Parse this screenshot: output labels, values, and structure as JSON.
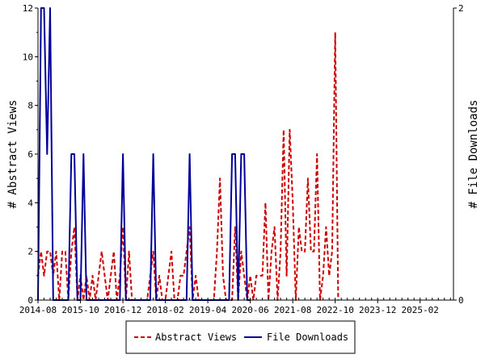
{
  "chart_data": {
    "type": "line",
    "ylabel_left": "# Abstract Views",
    "ylabel_right": "# File Downloads",
    "ylim_left": [
      0,
      12
    ],
    "ylim_right": [
      0,
      2
    ],
    "yticks_left": [
      "0",
      "2",
      "4",
      "6",
      "8",
      "10",
      "12"
    ],
    "yticks_right": [
      "0",
      "2"
    ],
    "xlim": [
      "2014-08",
      "2026-01"
    ],
    "xticks": [
      "2014-08",
      "2015-10",
      "2016-12",
      "2018-02",
      "2019-04",
      "2020-06",
      "2021-08",
      "2022-10",
      "2023-12",
      "2025-02"
    ],
    "grid": false,
    "legend_position": "bottom-center",
    "series": [
      {
        "name": "Abstract Views",
        "axis": "left",
        "color": "#cc0000",
        "style": "dashed",
        "points": [
          [
            "2014-08",
            1
          ],
          [
            "2014-09",
            2
          ],
          [
            "2014-10",
            1
          ],
          [
            "2014-11",
            2
          ],
          [
            "2014-12",
            2
          ],
          [
            "2015-01",
            1
          ],
          [
            "2015-02",
            2
          ],
          [
            "2015-03",
            0
          ],
          [
            "2015-04",
            2
          ],
          [
            "2015-05",
            2
          ],
          [
            "2015-06",
            0
          ],
          [
            "2015-07",
            2
          ],
          [
            "2015-08",
            3
          ],
          [
            "2015-09",
            0
          ],
          [
            "2015-10",
            1
          ],
          [
            "2015-11",
            0
          ],
          [
            "2015-12",
            1
          ],
          [
            "2016-01",
            0
          ],
          [
            "2016-02",
            1
          ],
          [
            "2016-03",
            0
          ],
          [
            "2016-04",
            1
          ],
          [
            "2016-05",
            2
          ],
          [
            "2016-06",
            1
          ],
          [
            "2016-07",
            0
          ],
          [
            "2016-08",
            1
          ],
          [
            "2016-09",
            2
          ],
          [
            "2016-10",
            0
          ],
          [
            "2016-11",
            1
          ],
          [
            "2016-12",
            3
          ],
          [
            "2017-01",
            0
          ],
          [
            "2017-02",
            2
          ],
          [
            "2017-03",
            0
          ],
          [
            "2017-04",
            0
          ],
          [
            "2017-05",
            0
          ],
          [
            "2017-06",
            0
          ],
          [
            "2017-07",
            0
          ],
          [
            "2017-08",
            0
          ],
          [
            "2017-09",
            1
          ],
          [
            "2017-10",
            2
          ],
          [
            "2017-11",
            0
          ],
          [
            "2017-12",
            1
          ],
          [
            "2018-01",
            0
          ],
          [
            "2018-02",
            0
          ],
          [
            "2018-03",
            1
          ],
          [
            "2018-04",
            2
          ],
          [
            "2018-05",
            0
          ],
          [
            "2018-06",
            0
          ],
          [
            "2018-07",
            1
          ],
          [
            "2018-08",
            1
          ],
          [
            "2018-09",
            2
          ],
          [
            "2018-10",
            3
          ],
          [
            "2018-11",
            0
          ],
          [
            "2018-12",
            1
          ],
          [
            "2019-01",
            0
          ],
          [
            "2019-02",
            0
          ],
          [
            "2019-03",
            0
          ],
          [
            "2019-04",
            0
          ],
          [
            "2019-05",
            0
          ],
          [
            "2019-06",
            0
          ],
          [
            "2019-07",
            2
          ],
          [
            "2019-08",
            5
          ],
          [
            "2019-09",
            1
          ],
          [
            "2019-10",
            0
          ],
          [
            "2019-11",
            0
          ],
          [
            "2019-12",
            0
          ],
          [
            "2020-01",
            3
          ],
          [
            "2020-02",
            0
          ],
          [
            "2020-03",
            2
          ],
          [
            "2020-04",
            1
          ],
          [
            "2020-05",
            0
          ],
          [
            "2020-06",
            1
          ],
          [
            "2020-07",
            0
          ],
          [
            "2020-08",
            1
          ],
          [
            "2020-09",
            1
          ],
          [
            "2020-10",
            1
          ],
          [
            "2020-11",
            4
          ],
          [
            "2020-12",
            0
          ],
          [
            "2021-01",
            2
          ],
          [
            "2021-02",
            3
          ],
          [
            "2021-03",
            0
          ],
          [
            "2021-04",
            2
          ],
          [
            "2021-05",
            7
          ],
          [
            "2021-06",
            1
          ],
          [
            "2021-07",
            7
          ],
          [
            "2021-08",
            4
          ],
          [
            "2021-09",
            0
          ],
          [
            "2021-10",
            3
          ],
          [
            "2021-11",
            2
          ],
          [
            "2021-12",
            2
          ],
          [
            "2022-01",
            5
          ],
          [
            "2022-02",
            2
          ],
          [
            "2022-03",
            2
          ],
          [
            "2022-04",
            6
          ],
          [
            "2022-05",
            0
          ],
          [
            "2022-06",
            1
          ],
          [
            "2022-07",
            3
          ],
          [
            "2022-08",
            1
          ],
          [
            "2022-09",
            2
          ],
          [
            "2022-10",
            11
          ],
          [
            "2022-11",
            0
          ]
        ]
      },
      {
        "name": "File Downloads",
        "axis": "right",
        "color": "#000099",
        "style": "solid",
        "points": [
          [
            "2014-08",
            0
          ],
          [
            "2014-09",
            2
          ],
          [
            "2014-10",
            2
          ],
          [
            "2014-11",
            1
          ],
          [
            "2014-12",
            2
          ],
          [
            "2015-01",
            0
          ],
          [
            "2015-02",
            0
          ],
          [
            "2015-03",
            0
          ],
          [
            "2015-04",
            0
          ],
          [
            "2015-05",
            0
          ],
          [
            "2015-06",
            0
          ],
          [
            "2015-07",
            1
          ],
          [
            "2015-08",
            1
          ],
          [
            "2015-09",
            0
          ],
          [
            "2015-10",
            0
          ],
          [
            "2015-11",
            1
          ],
          [
            "2015-12",
            0
          ],
          [
            "2016-01",
            0
          ],
          [
            "2016-02",
            0
          ],
          [
            "2016-03",
            0
          ],
          [
            "2016-04",
            0
          ],
          [
            "2016-05",
            0
          ],
          [
            "2016-06",
            0
          ],
          [
            "2016-07",
            0
          ],
          [
            "2016-08",
            0
          ],
          [
            "2016-09",
            0
          ],
          [
            "2016-10",
            0
          ],
          [
            "2016-11",
            0
          ],
          [
            "2016-12",
            1
          ],
          [
            "2017-01",
            0
          ],
          [
            "2017-02",
            0
          ],
          [
            "2017-03",
            0
          ],
          [
            "2017-04",
            0
          ],
          [
            "2017-05",
            0
          ],
          [
            "2017-06",
            0
          ],
          [
            "2017-07",
            0
          ],
          [
            "2017-08",
            0
          ],
          [
            "2017-09",
            0
          ],
          [
            "2017-10",
            1
          ],
          [
            "2017-11",
            0
          ],
          [
            "2017-12",
            0
          ],
          [
            "2018-01",
            0
          ],
          [
            "2018-02",
            0
          ],
          [
            "2018-03",
            0
          ],
          [
            "2018-04",
            0
          ],
          [
            "2018-05",
            0
          ],
          [
            "2018-06",
            0
          ],
          [
            "2018-07",
            0
          ],
          [
            "2018-08",
            0
          ],
          [
            "2018-09",
            0
          ],
          [
            "2018-10",
            1
          ],
          [
            "2018-11",
            0
          ],
          [
            "2018-12",
            0
          ],
          [
            "2019-01",
            0
          ],
          [
            "2019-02",
            0
          ],
          [
            "2019-03",
            0
          ],
          [
            "2019-04",
            0
          ],
          [
            "2019-05",
            0
          ],
          [
            "2019-06",
            0
          ],
          [
            "2019-07",
            0
          ],
          [
            "2019-08",
            0
          ],
          [
            "2019-09",
            0
          ],
          [
            "2019-10",
            0
          ],
          [
            "2019-11",
            0
          ],
          [
            "2019-12",
            1
          ],
          [
            "2020-01",
            1
          ],
          [
            "2020-02",
            0
          ],
          [
            "2020-03",
            1
          ],
          [
            "2020-04",
            1
          ],
          [
            "2020-05",
            0
          ],
          [
            "2020-06",
            0
          ]
        ]
      }
    ]
  }
}
